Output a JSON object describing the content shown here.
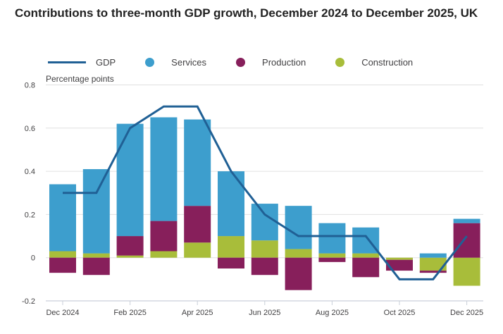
{
  "title": "Contributions to three-month GDP growth, December 2024 to December 2025, UK",
  "legend": [
    {
      "name": "GDP",
      "kind": "line",
      "color": "#206095"
    },
    {
      "name": "Services",
      "kind": "dot",
      "color": "#3D9ECD"
    },
    {
      "name": "Production",
      "kind": "dot",
      "color": "#871F5B"
    },
    {
      "name": "Construction",
      "kind": "dot",
      "color": "#A8BD3A"
    }
  ],
  "chart_data": {
    "type": "bar",
    "stacked": true,
    "title": "Contributions to three-month GDP growth, December 2024 to December 2025, UK",
    "ylabel": "Percentage points",
    "xlabel": "",
    "ylim": [
      -0.2,
      0.8
    ],
    "yticks": [
      -0.2,
      0,
      0.2,
      0.4,
      0.6,
      0.8
    ],
    "ytick_labels": [
      "-0.2",
      "0",
      "0.2",
      "0.4",
      "0.6",
      "0.8"
    ],
    "grid": true,
    "legend_position": "top-left",
    "categories": [
      "Dec 2024",
      "Jan 2025",
      "Feb 2025",
      "Mar 2025",
      "Apr 2025",
      "May 2025",
      "Jun 2025",
      "Jul 2025",
      "Aug 2025",
      "Sep 2025",
      "Oct 2025",
      "Nov 2025",
      "Dec 2025"
    ],
    "xtick_labels": [
      "Dec 2024",
      "Feb 2025",
      "Apr 2025",
      "Jun 2025",
      "Aug 2025",
      "Oct 2025",
      "Dec 2025"
    ],
    "series": [
      {
        "name": "Construction",
        "type": "bar",
        "color": "#A8BD3A",
        "values": [
          0.03,
          0.02,
          0.01,
          0.03,
          0.07,
          0.1,
          0.08,
          0.04,
          0.02,
          0.02,
          -0.01,
          -0.06,
          -0.13
        ]
      },
      {
        "name": "Production",
        "type": "bar",
        "color": "#871F5B",
        "values": [
          -0.07,
          -0.08,
          0.09,
          0.14,
          0.17,
          -0.05,
          -0.08,
          -0.15,
          -0.02,
          -0.09,
          -0.05,
          -0.01,
          0.16
        ]
      },
      {
        "name": "Services",
        "type": "bar",
        "color": "#3D9ECD",
        "values": [
          0.31,
          0.39,
          0.52,
          0.48,
          0.4,
          0.3,
          0.17,
          0.2,
          0.14,
          0.12,
          0.0,
          0.02,
          0.02
        ]
      },
      {
        "name": "GDP",
        "type": "line",
        "color": "#206095",
        "values": [
          0.3,
          0.3,
          0.6,
          0.7,
          0.7,
          0.4,
          0.2,
          0.1,
          0.1,
          0.1,
          -0.1,
          -0.1,
          0.1
        ]
      }
    ]
  }
}
